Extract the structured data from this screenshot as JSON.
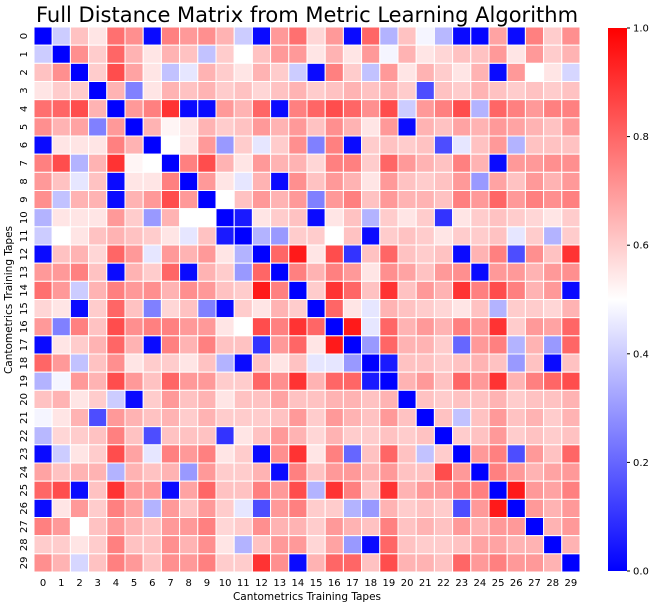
{
  "chart_data": {
    "type": "heatmap",
    "title": "Full Distance Matrix from Metric Learning Algorithm",
    "xlabel": "Cantometrics Training Tapes",
    "ylabel": "Cantometrics Training Tapes",
    "x_labels": [
      "0",
      "1",
      "2",
      "3",
      "4",
      "5",
      "6",
      "7",
      "8",
      "9",
      "10",
      "11",
      "12",
      "13",
      "14",
      "15",
      "16",
      "17",
      "18",
      "19",
      "20",
      "21",
      "22",
      "23",
      "24",
      "25",
      "26",
      "27",
      "28",
      "29"
    ],
    "y_labels": [
      "0",
      "1",
      "2",
      "3",
      "4",
      "5",
      "6",
      "7",
      "8",
      "9",
      "10",
      "11",
      "12",
      "13",
      "14",
      "15",
      "16",
      "17",
      "18",
      "19",
      "20",
      "21",
      "22",
      "23",
      "24",
      "25",
      "26",
      "27",
      "28",
      "29"
    ],
    "colorbar": {
      "min": 0.0,
      "max": 1.0,
      "ticks": [
        "0.0",
        "0.2",
        "0.4",
        "0.6",
        "0.8",
        "1.0"
      ],
      "colormap": [
        "#0000ff",
        "#ffffff",
        "#ff0000"
      ]
    },
    "values": [
      [
        0.0,
        0.4,
        0.62,
        0.55,
        0.78,
        0.72,
        0.02,
        0.75,
        0.7,
        0.72,
        0.65,
        0.4,
        0.02,
        0.7,
        0.78,
        0.58,
        0.7,
        0.02,
        0.8,
        0.35,
        0.62,
        0.48,
        0.36,
        0.02,
        0.01,
        0.68,
        0.02,
        0.75,
        0.6,
        0.72
      ],
      [
        0.4,
        0.0,
        0.72,
        0.6,
        0.8,
        0.65,
        0.55,
        0.65,
        0.62,
        0.38,
        0.6,
        0.5,
        0.62,
        0.7,
        0.7,
        0.55,
        0.65,
        0.55,
        0.7,
        0.48,
        0.65,
        0.55,
        0.58,
        0.62,
        0.62,
        0.7,
        0.55,
        0.7,
        0.6,
        0.65
      ],
      [
        0.62,
        0.72,
        0.0,
        0.6,
        0.85,
        0.68,
        0.55,
        0.38,
        0.45,
        0.65,
        0.6,
        0.55,
        0.65,
        0.6,
        0.4,
        0.02,
        0.75,
        0.6,
        0.38,
        0.7,
        0.55,
        0.65,
        0.6,
        0.55,
        0.65,
        0.02,
        0.7,
        0.5,
        0.55,
        0.42
      ],
      [
        0.55,
        0.6,
        0.6,
        0.0,
        0.65,
        0.25,
        0.55,
        0.65,
        0.62,
        0.65,
        0.6,
        0.62,
        0.58,
        0.62,
        0.65,
        0.6,
        0.62,
        0.65,
        0.62,
        0.65,
        0.6,
        0.15,
        0.62,
        0.6,
        0.65,
        0.62,
        0.6,
        0.62,
        0.6,
        0.62
      ],
      [
        0.78,
        0.8,
        0.85,
        0.65,
        0.0,
        0.7,
        0.75,
        0.9,
        0.02,
        0.02,
        0.7,
        0.65,
        0.8,
        0.02,
        0.75,
        0.8,
        0.85,
        0.8,
        0.72,
        0.85,
        0.4,
        0.7,
        0.75,
        0.85,
        0.35,
        0.8,
        0.75,
        0.7,
        0.75,
        0.75
      ],
      [
        0.72,
        0.65,
        0.68,
        0.25,
        0.7,
        0.0,
        0.65,
        0.52,
        0.55,
        0.65,
        0.6,
        0.62,
        0.7,
        0.65,
        0.7,
        0.62,
        0.72,
        0.65,
        0.55,
        0.7,
        0.02,
        0.65,
        0.62,
        0.68,
        0.65,
        0.7,
        0.68,
        0.65,
        0.62,
        0.7
      ],
      [
        0.02,
        0.55,
        0.55,
        0.55,
        0.75,
        0.65,
        0.0,
        0.5,
        0.55,
        0.7,
        0.3,
        0.6,
        0.45,
        0.6,
        0.72,
        0.25,
        0.75,
        0.02,
        0.6,
        0.62,
        0.6,
        0.62,
        0.15,
        0.45,
        0.62,
        0.7,
        0.35,
        0.62,
        0.62,
        0.62
      ],
      [
        0.75,
        0.85,
        0.35,
        0.65,
        0.9,
        0.52,
        0.5,
        0.0,
        0.75,
        0.85,
        0.65,
        0.55,
        0.7,
        0.65,
        0.65,
        0.58,
        0.75,
        0.75,
        0.6,
        0.8,
        0.7,
        0.65,
        0.62,
        0.75,
        0.65,
        0.02,
        0.7,
        0.7,
        0.72,
        0.72
      ],
      [
        0.7,
        0.62,
        0.45,
        0.62,
        0.02,
        0.55,
        0.55,
        0.75,
        0.0,
        0.7,
        0.55,
        0.45,
        0.65,
        0.02,
        0.72,
        0.62,
        0.7,
        0.65,
        0.55,
        0.7,
        0.62,
        0.6,
        0.62,
        0.7,
        0.3,
        0.68,
        0.62,
        0.7,
        0.65,
        0.7
      ],
      [
        0.72,
        0.38,
        0.65,
        0.65,
        0.02,
        0.65,
        0.7,
        0.85,
        0.7,
        0.0,
        0.5,
        0.62,
        0.7,
        0.65,
        0.7,
        0.25,
        0.7,
        0.75,
        0.62,
        0.7,
        0.65,
        0.65,
        0.62,
        0.75,
        0.7,
        0.8,
        0.7,
        0.75,
        0.72,
        0.75
      ],
      [
        0.35,
        0.55,
        0.55,
        0.55,
        0.7,
        0.6,
        0.3,
        0.65,
        0.5,
        0.5,
        0.0,
        0.05,
        0.55,
        0.6,
        0.62,
        0.02,
        0.55,
        0.62,
        0.35,
        0.6,
        0.55,
        0.6,
        0.1,
        0.55,
        0.6,
        0.62,
        0.6,
        0.58,
        0.55,
        0.6
      ],
      [
        0.4,
        0.5,
        0.55,
        0.62,
        0.65,
        0.62,
        0.6,
        0.55,
        0.45,
        0.62,
        0.05,
        0.0,
        0.35,
        0.3,
        0.6,
        0.6,
        0.5,
        0.62,
        0.02,
        0.6,
        0.62,
        0.6,
        0.55,
        0.6,
        0.6,
        0.62,
        0.45,
        0.6,
        0.35,
        0.6
      ],
      [
        0.02,
        0.62,
        0.65,
        0.58,
        0.8,
        0.7,
        0.45,
        0.7,
        0.65,
        0.7,
        0.55,
        0.35,
        0.0,
        0.8,
        0.95,
        0.55,
        0.85,
        0.1,
        0.62,
        0.8,
        0.62,
        0.6,
        0.62,
        0.02,
        0.65,
        0.75,
        0.15,
        0.72,
        0.62,
        0.9
      ],
      [
        0.7,
        0.7,
        0.75,
        0.62,
        0.02,
        0.65,
        0.6,
        0.8,
        0.02,
        0.65,
        0.6,
        0.3,
        0.8,
        0.0,
        0.75,
        0.65,
        0.75,
        0.7,
        0.55,
        0.72,
        0.68,
        0.62,
        0.7,
        0.72,
        0.02,
        0.7,
        0.7,
        0.65,
        0.7,
        0.72
      ],
      [
        0.78,
        0.7,
        0.4,
        0.65,
        0.75,
        0.7,
        0.72,
        0.65,
        0.72,
        0.7,
        0.62,
        0.6,
        0.95,
        0.75,
        0.0,
        0.6,
        0.9,
        0.8,
        0.62,
        0.9,
        0.62,
        0.7,
        0.65,
        0.9,
        0.75,
        0.85,
        0.75,
        0.65,
        0.7,
        0.02
      ],
      [
        0.58,
        0.55,
        0.02,
        0.6,
        0.8,
        0.62,
        0.25,
        0.58,
        0.62,
        0.25,
        0.02,
        0.6,
        0.55,
        0.65,
        0.6,
        0.0,
        0.8,
        0.55,
        0.45,
        0.65,
        0.62,
        0.6,
        0.58,
        0.55,
        0.62,
        0.35,
        0.6,
        0.6,
        0.58,
        0.65
      ],
      [
        0.7,
        0.25,
        0.75,
        0.62,
        0.85,
        0.72,
        0.75,
        0.75,
        0.7,
        0.7,
        0.55,
        0.5,
        0.85,
        0.75,
        0.9,
        0.8,
        0.0,
        0.95,
        0.45,
        0.8,
        0.65,
        0.7,
        0.65,
        0.75,
        0.7,
        0.9,
        0.6,
        0.7,
        0.68,
        0.8
      ],
      [
        0.02,
        0.55,
        0.6,
        0.65,
        0.8,
        0.65,
        0.02,
        0.75,
        0.65,
        0.75,
        0.62,
        0.62,
        0.1,
        0.7,
        0.8,
        0.55,
        0.95,
        0.0,
        0.3,
        0.8,
        0.65,
        0.65,
        0.6,
        0.2,
        0.7,
        0.75,
        0.35,
        0.65,
        0.3,
        0.8
      ],
      [
        0.8,
        0.7,
        0.38,
        0.62,
        0.72,
        0.55,
        0.6,
        0.6,
        0.55,
        0.62,
        0.35,
        0.02,
        0.62,
        0.55,
        0.62,
        0.45,
        0.45,
        0.3,
        0.0,
        0.05,
        0.62,
        0.62,
        0.6,
        0.62,
        0.65,
        0.62,
        0.3,
        0.62,
        0.02,
        0.62
      ],
      [
        0.35,
        0.48,
        0.7,
        0.65,
        0.85,
        0.7,
        0.62,
        0.8,
        0.7,
        0.7,
        0.6,
        0.6,
        0.8,
        0.72,
        0.9,
        0.65,
        0.8,
        0.8,
        0.05,
        0.0,
        0.65,
        0.7,
        0.62,
        0.8,
        0.7,
        0.9,
        0.65,
        0.75,
        0.8,
        0.85
      ],
      [
        0.62,
        0.65,
        0.55,
        0.6,
        0.4,
        0.02,
        0.6,
        0.7,
        0.62,
        0.65,
        0.55,
        0.62,
        0.62,
        0.68,
        0.62,
        0.62,
        0.65,
        0.65,
        0.62,
        0.65,
        0.0,
        0.62,
        0.6,
        0.62,
        0.62,
        0.65,
        0.6,
        0.62,
        0.62,
        0.65
      ],
      [
        0.48,
        0.55,
        0.65,
        0.15,
        0.7,
        0.65,
        0.62,
        0.65,
        0.6,
        0.65,
        0.6,
        0.6,
        0.6,
        0.62,
        0.7,
        0.6,
        0.7,
        0.65,
        0.62,
        0.7,
        0.62,
        0.0,
        0.62,
        0.38,
        0.62,
        0.7,
        0.62,
        0.65,
        0.6,
        0.65
      ],
      [
        0.36,
        0.58,
        0.6,
        0.62,
        0.75,
        0.62,
        0.15,
        0.62,
        0.62,
        0.62,
        0.1,
        0.55,
        0.62,
        0.7,
        0.65,
        0.58,
        0.65,
        0.6,
        0.6,
        0.62,
        0.6,
        0.62,
        0.0,
        0.6,
        0.62,
        0.7,
        0.6,
        0.62,
        0.6,
        0.62
      ],
      [
        0.02,
        0.4,
        0.55,
        0.6,
        0.85,
        0.68,
        0.45,
        0.75,
        0.7,
        0.75,
        0.55,
        0.6,
        0.02,
        0.72,
        0.9,
        0.55,
        0.75,
        0.2,
        0.62,
        0.8,
        0.62,
        0.38,
        0.6,
        0.0,
        0.7,
        0.75,
        0.15,
        0.7,
        0.62,
        0.8
      ],
      [
        0.68,
        0.62,
        0.65,
        0.65,
        0.35,
        0.65,
        0.62,
        0.65,
        0.3,
        0.7,
        0.6,
        0.6,
        0.65,
        0.02,
        0.75,
        0.62,
        0.7,
        0.7,
        0.65,
        0.7,
        0.62,
        0.62,
        0.85,
        0.7,
        0.0,
        0.75,
        0.7,
        0.65,
        0.68,
        0.7
      ],
      [
        0.8,
        0.85,
        0.02,
        0.62,
        0.9,
        0.7,
        0.7,
        0.02,
        0.68,
        0.8,
        0.62,
        0.62,
        0.75,
        0.7,
        0.85,
        0.35,
        0.9,
        0.75,
        0.62,
        0.9,
        0.65,
        0.7,
        0.7,
        0.75,
        0.75,
        0.0,
        0.95,
        0.7,
        0.68,
        0.75
      ],
      [
        0.02,
        0.55,
        0.7,
        0.6,
        0.75,
        0.68,
        0.35,
        0.7,
        0.62,
        0.7,
        0.6,
        0.45,
        0.15,
        0.7,
        0.75,
        0.6,
        0.6,
        0.35,
        0.3,
        0.65,
        0.6,
        0.62,
        0.6,
        0.15,
        0.7,
        0.95,
        0.0,
        0.7,
        0.65,
        0.7
      ],
      [
        0.75,
        0.7,
        0.5,
        0.62,
        0.7,
        0.65,
        0.62,
        0.7,
        0.7,
        0.75,
        0.58,
        0.6,
        0.72,
        0.65,
        0.65,
        0.6,
        0.7,
        0.65,
        0.62,
        0.75,
        0.62,
        0.65,
        0.62,
        0.7,
        0.65,
        0.7,
        0.7,
        0.0,
        0.65,
        0.7
      ],
      [
        0.6,
        0.6,
        0.55,
        0.6,
        0.75,
        0.62,
        0.62,
        0.72,
        0.65,
        0.72,
        0.55,
        0.35,
        0.62,
        0.7,
        0.7,
        0.58,
        0.68,
        0.3,
        0.02,
        0.8,
        0.62,
        0.6,
        0.6,
        0.62,
        0.68,
        0.68,
        0.65,
        0.65,
        0.0,
        0.65
      ],
      [
        0.72,
        0.65,
        0.42,
        0.62,
        0.75,
        0.7,
        0.62,
        0.72,
        0.7,
        0.75,
        0.6,
        0.6,
        0.9,
        0.72,
        0.02,
        0.65,
        0.8,
        0.8,
        0.62,
        0.85,
        0.65,
        0.65,
        0.62,
        0.8,
        0.7,
        0.75,
        0.7,
        0.7,
        0.65,
        0.0
      ]
    ]
  }
}
